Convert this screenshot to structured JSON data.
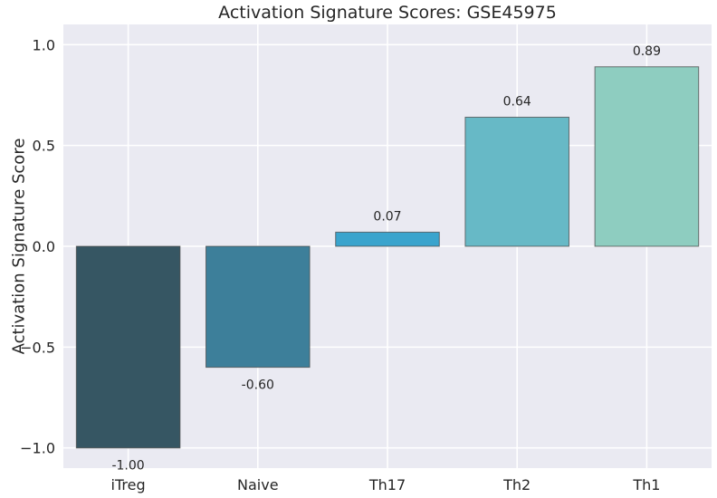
{
  "chart_data": {
    "type": "bar",
    "title": "Activation Signature Scores: GSE45975",
    "xlabel": "",
    "ylabel": "Activation Signature Score",
    "categories": [
      "iTreg",
      "Naive",
      "Th17",
      "Th2",
      "Th1"
    ],
    "values": [
      -1.0,
      -0.6,
      0.07,
      0.64,
      0.89
    ],
    "value_labels": [
      "-1.00",
      "-0.60",
      "0.07",
      "0.64",
      "0.89"
    ],
    "bar_colors": [
      "#365663",
      "#3d7f9a",
      "#3aa4cd",
      "#67b9c6",
      "#8ecdc0"
    ],
    "ylim": [
      -1.1,
      1.1
    ],
    "yticks": [
      -1.0,
      -0.5,
      0.0,
      0.5,
      1.0
    ],
    "ytick_labels": [
      "−1.0",
      "−0.5",
      "0.0",
      "0.5",
      "1.0"
    ],
    "grid": true,
    "background_color": "#eaeaf2"
  }
}
